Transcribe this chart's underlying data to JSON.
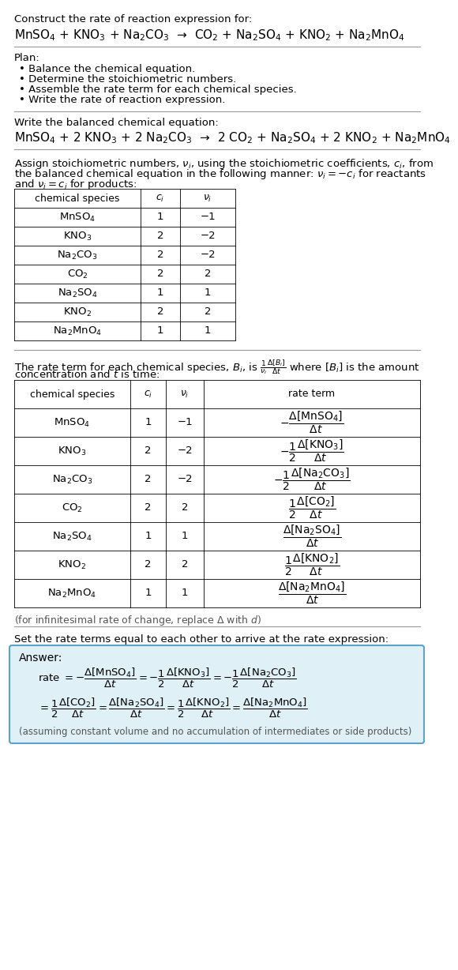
{
  "bg_color": "#ffffff",
  "title_line1": "Construct the rate of reaction expression for:",
  "reaction_unbalanced": "MnSO$_4$ + KNO$_3$ + Na$_2$CO$_3$  →  CO$_2$ + Na$_2$SO$_4$ + KNO$_2$ + Na$_2$MnO$_4$",
  "plan_header": "Plan:",
  "plan_items": [
    "• Balance the chemical equation.",
    "• Determine the stoichiometric numbers.",
    "• Assemble the rate term for each chemical species.",
    "• Write the rate of reaction expression."
  ],
  "balanced_header": "Write the balanced chemical equation:",
  "reaction_balanced": "MnSO$_4$ + 2 KNO$_3$ + 2 Na$_2$CO$_3$  →  2 CO$_2$ + Na$_2$SO$_4$ + 2 KNO$_2$ + Na$_2$MnO$_4$",
  "table1_headers": [
    "chemical species",
    "$c_i$",
    "$\\nu_i$"
  ],
  "table1_data": [
    [
      "MnSO$_4$",
      "1",
      "−1"
    ],
    [
      "KNO$_3$",
      "2",
      "−2"
    ],
    [
      "Na$_2$CO$_3$",
      "2",
      "−2"
    ],
    [
      "CO$_2$",
      "2",
      "2"
    ],
    [
      "Na$_2$SO$_4$",
      "1",
      "1"
    ],
    [
      "KNO$_2$",
      "2",
      "2"
    ],
    [
      "Na$_2$MnO$_4$",
      "1",
      "1"
    ]
  ],
  "table2_headers": [
    "chemical species",
    "$c_i$",
    "$\\nu_i$",
    "rate term"
  ],
  "table2_data_cols": [
    [
      "MnSO$_4$",
      "KNO$_3$",
      "Na$_2$CO$_3$",
      "CO$_2$",
      "Na$_2$SO$_4$",
      "KNO$_2$",
      "Na$_2$MnO$_4$"
    ],
    [
      "1",
      "2",
      "2",
      "2",
      "1",
      "2",
      "1"
    ],
    [
      "−1",
      "−2",
      "−2",
      "2",
      "1",
      "2",
      "1"
    ]
  ],
  "rate_terms": [
    "$-\\dfrac{\\Delta[\\mathrm{MnSO_4}]}{\\Delta t}$",
    "$-\\dfrac{1}{2}\\dfrac{\\Delta[\\mathrm{KNO_3}]}{\\Delta t}$",
    "$-\\dfrac{1}{2}\\dfrac{\\Delta[\\mathrm{Na_2CO_3}]}{\\Delta t}$",
    "$\\dfrac{1}{2}\\dfrac{\\Delta[\\mathrm{CO_2}]}{\\Delta t}$",
    "$\\dfrac{\\Delta[\\mathrm{Na_2SO_4}]}{\\Delta t}$",
    "$\\dfrac{1}{2}\\dfrac{\\Delta[\\mathrm{KNO_2}]}{\\Delta t}$",
    "$\\dfrac{\\Delta[\\mathrm{Na_2MnO_4}]}{\\Delta t}$"
  ],
  "infinitesimal_note": "(for infinitesimal rate of change, replace Δ with $d$)",
  "set_equal_header": "Set the rate terms equal to each other to arrive at the rate expression:",
  "answer_box_color": "#dff0f7",
  "answer_border_color": "#5ba3c9",
  "assuming_note": "(assuming constant volume and no accumulation of intermediates or side products)"
}
